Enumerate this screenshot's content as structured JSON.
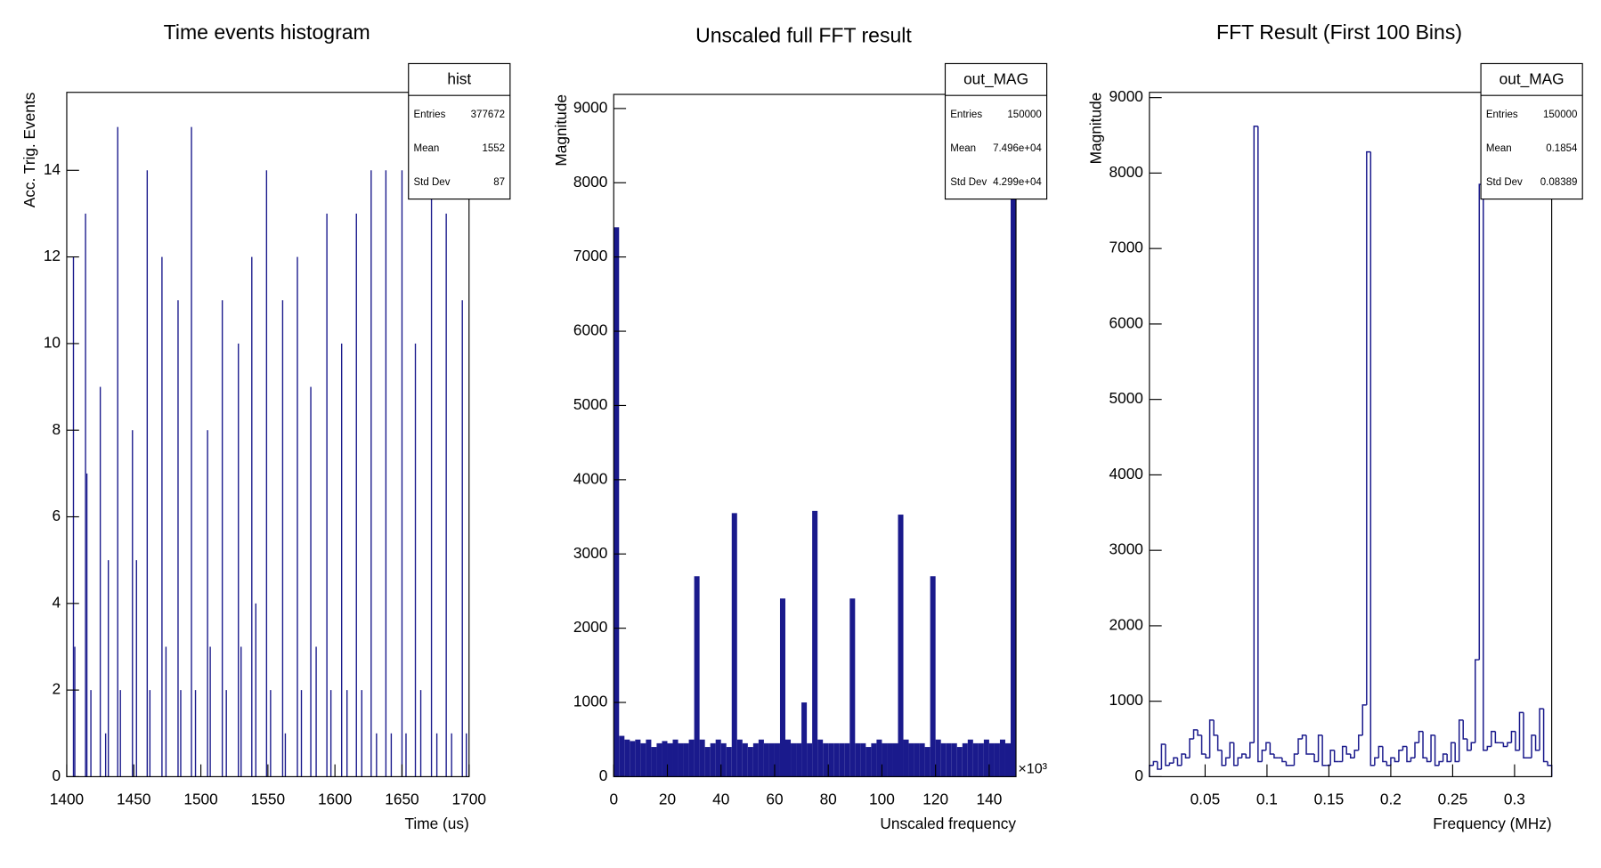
{
  "chart_data": [
    {
      "type": "bar",
      "title": "Time events histogram",
      "xlabel": "Time (us)",
      "ylabel": "Acc. Trig. Events",
      "color": "#1a1a8c",
      "x": [
        1405,
        1406,
        1414,
        1415,
        1418,
        1425,
        1429,
        1431,
        1438,
        1440,
        1449,
        1452,
        1460,
        1462,
        1471,
        1474,
        1483,
        1485,
        1493,
        1496,
        1505,
        1507,
        1516,
        1519,
        1528,
        1530,
        1538,
        1541,
        1549,
        1552,
        1561,
        1563,
        1572,
        1575,
        1582,
        1586,
        1594,
        1597,
        1605,
        1609,
        1616,
        1620,
        1627,
        1631,
        1638,
        1642,
        1650,
        1653,
        1660,
        1664,
        1672,
        1676,
        1683,
        1687,
        1695,
        1698
      ],
      "values": [
        12,
        3,
        13,
        7,
        2,
        9,
        1,
        5,
        15,
        2,
        8,
        5,
        14,
        2,
        12,
        3,
        11,
        2,
        15,
        2,
        8,
        3,
        11,
        2,
        10,
        3,
        12,
        4,
        14,
        2,
        11,
        1,
        12,
        2,
        9,
        3,
        13,
        2,
        10,
        2,
        13,
        2,
        14,
        1,
        14,
        1,
        14,
        1,
        10,
        2,
        14,
        1,
        13,
        1,
        11,
        1
      ],
      "xlim": [
        1400,
        1700
      ],
      "xticks": [
        1400,
        1450,
        1500,
        1550,
        1600,
        1650,
        1700
      ],
      "ylim": [
        0,
        15.8
      ],
      "yticks": [
        0,
        2,
        4,
        6,
        8,
        10,
        12,
        14
      ],
      "stats": {
        "name": "hist",
        "rows": [
          [
            "Entries",
            "377672"
          ],
          [
            "Mean",
            "1552"
          ],
          [
            "Std Dev",
            "87"
          ]
        ]
      }
    },
    {
      "type": "histogram",
      "title": "Unscaled full FFT result",
      "xlabel": "Unscaled frequency",
      "ylabel": "Magnitude",
      "x_exponent": "×10³",
      "color": "#1a1a8c",
      "filled": true,
      "bins": [
        0,
        2,
        4,
        6,
        8,
        10,
        12,
        14,
        16,
        18,
        20,
        22,
        24,
        26,
        28,
        30,
        32,
        34,
        36,
        38,
        40,
        42,
        44,
        46,
        48,
        50,
        52,
        54,
        56,
        58,
        60,
        62,
        64,
        66,
        68,
        70,
        72,
        74,
        76,
        78,
        80,
        82,
        84,
        86,
        88,
        90,
        92,
        94,
        96,
        98,
        100,
        102,
        104,
        106,
        108,
        110,
        112,
        114,
        116,
        118,
        120,
        122,
        124,
        126,
        128,
        130,
        132,
        134,
        136,
        138,
        140,
        142,
        144,
        146,
        148,
        150
      ],
      "values": [
        7400,
        550,
        500,
        480,
        500,
        450,
        500,
        400,
        450,
        480,
        450,
        500,
        450,
        450,
        500,
        2700,
        500,
        400,
        450,
        500,
        450,
        400,
        3550,
        500,
        450,
        400,
        450,
        500,
        450,
        450,
        450,
        2400,
        500,
        450,
        450,
        1000,
        450,
        3580,
        500,
        450,
        450,
        450,
        450,
        450,
        2400,
        450,
        450,
        400,
        450,
        500,
        450,
        450,
        450,
        3530,
        500,
        450,
        450,
        450,
        400,
        2700,
        500,
        450,
        450,
        450,
        400,
        450,
        500,
        450,
        450,
        500,
        450,
        450,
        500,
        450,
        7800
      ],
      "xlim": [
        0,
        150
      ],
      "xticks": [
        0,
        20,
        40,
        60,
        80,
        100,
        120,
        140
      ],
      "ylim": [
        0,
        9190
      ],
      "yticks": [
        0,
        1000,
        2000,
        3000,
        4000,
        5000,
        6000,
        7000,
        8000,
        9000
      ],
      "stats": {
        "name": "out_MAG",
        "rows": [
          [
            "Entries",
            "150000"
          ],
          [
            "Mean",
            "7.496e+04"
          ],
          [
            "Std Dev",
            "4.299e+04"
          ]
        ]
      }
    },
    {
      "type": "histogram",
      "title": "FFT Result (First 100 Bins)",
      "xlabel": "Frequency (MHz)",
      "ylabel": "Magnitude",
      "color": "#1a1a8c",
      "filled": false,
      "bins": [
        0.005,
        0.00825,
        0.0115,
        0.01475,
        0.018,
        0.02125,
        0.0245,
        0.02775,
        0.031,
        0.03425,
        0.0375,
        0.04075,
        0.044,
        0.04725,
        0.0505,
        0.05375,
        0.057,
        0.06025,
        0.0635,
        0.06675,
        0.07,
        0.07325,
        0.0765,
        0.07975,
        0.083,
        0.08625,
        0.0895,
        0.09275,
        0.096,
        0.09925,
        0.1025,
        0.10575,
        0.109,
        0.11225,
        0.1155,
        0.11875,
        0.122,
        0.12525,
        0.1285,
        0.13175,
        0.135,
        0.13825,
        0.1415,
        0.14475,
        0.148,
        0.15125,
        0.1545,
        0.15775,
        0.161,
        0.16425,
        0.1675,
        0.17075,
        0.174,
        0.17725,
        0.1805,
        0.18375,
        0.187,
        0.19025,
        0.1935,
        0.19675,
        0.2,
        0.20325,
        0.2065,
        0.20975,
        0.213,
        0.21625,
        0.2195,
        0.22275,
        0.226,
        0.22925,
        0.2325,
        0.23575,
        0.239,
        0.24225,
        0.2455,
        0.24875,
        0.252,
        0.25525,
        0.2585,
        0.26175,
        0.265,
        0.26825,
        0.2715,
        0.27475,
        0.278,
        0.28125,
        0.2845,
        0.28775,
        0.291,
        0.29425,
        0.2975,
        0.30075,
        0.304,
        0.30725,
        0.3105,
        0.31375,
        0.317,
        0.32025,
        0.3235,
        0.32675,
        0.33
      ],
      "values": [
        150,
        200,
        100,
        430,
        150,
        180,
        250,
        150,
        300,
        250,
        500,
        620,
        550,
        300,
        250,
        750,
        550,
        350,
        150,
        250,
        450,
        150,
        250,
        300,
        250,
        450,
        8620,
        200,
        350,
        450,
        300,
        250,
        250,
        200,
        150,
        150,
        300,
        500,
        550,
        300,
        300,
        200,
        550,
        150,
        150,
        350,
        200,
        200,
        400,
        300,
        250,
        350,
        550,
        950,
        8280,
        150,
        250,
        400,
        200,
        150,
        250,
        200,
        350,
        400,
        200,
        250,
        450,
        600,
        250,
        200,
        550,
        150,
        200,
        300,
        200,
        450,
        200,
        750,
        500,
        350,
        450,
        1550,
        7850,
        350,
        400,
        600,
        450,
        450,
        400,
        450,
        600,
        350,
        850,
        250,
        250,
        550,
        350,
        900,
        200,
        150
      ],
      "xlim": [
        0.005,
        0.33
      ],
      "xticks": [
        0.05,
        0.1,
        0.15,
        0.2,
        0.25,
        0.3
      ],
      "ylim": [
        0,
        9070
      ],
      "yticks": [
        0,
        1000,
        2000,
        3000,
        4000,
        5000,
        6000,
        7000,
        8000,
        9000
      ],
      "stats": {
        "name": "out_MAG",
        "rows": [
          [
            "Entries",
            "150000"
          ],
          [
            "Mean",
            "0.1854"
          ],
          [
            "Std Dev",
            "0.08389"
          ]
        ]
      }
    }
  ]
}
